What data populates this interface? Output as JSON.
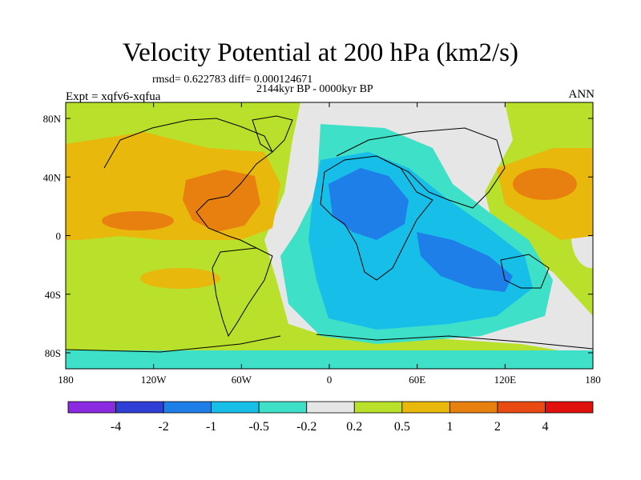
{
  "figure": {
    "title": "Velocity Potential at 200 hPa (km2/s)",
    "stats": "rmsd= 0.622783 diff= 0.000124671",
    "period": "2144kyr BP - 0000kyr BP",
    "experiment": "Expt = xqfv6-xqfua",
    "season": "ANN"
  },
  "axes": {
    "lon_ticks": [
      "180",
      "120W",
      "60W",
      "0",
      "60E",
      "120E",
      "180"
    ],
    "lat_ticks": [
      "80N",
      "40N",
      "0",
      "40S",
      "80S"
    ]
  },
  "colorbar": {
    "labels": [
      "-4",
      "-2",
      "-1",
      "-0.5",
      "-0.2",
      "0.2",
      "0.5",
      "1",
      "2",
      "4"
    ],
    "colors": [
      "#8a2be2",
      "#2f3fd6",
      "#1f7fe8",
      "#17bfe8",
      "#3ee0c8",
      "#e6e6e6",
      "#b9e02a",
      "#e8b80c",
      "#e88010",
      "#e84a12",
      "#e0100c"
    ]
  },
  "palette": {
    "grey": "#e6e6e6",
    "green": "#b9e02a",
    "lightorange": "#e8b80c",
    "orange": "#e88010",
    "teal": "#3ee0c8",
    "cyan": "#17bfe8",
    "blue": "#1f7fe8"
  }
}
